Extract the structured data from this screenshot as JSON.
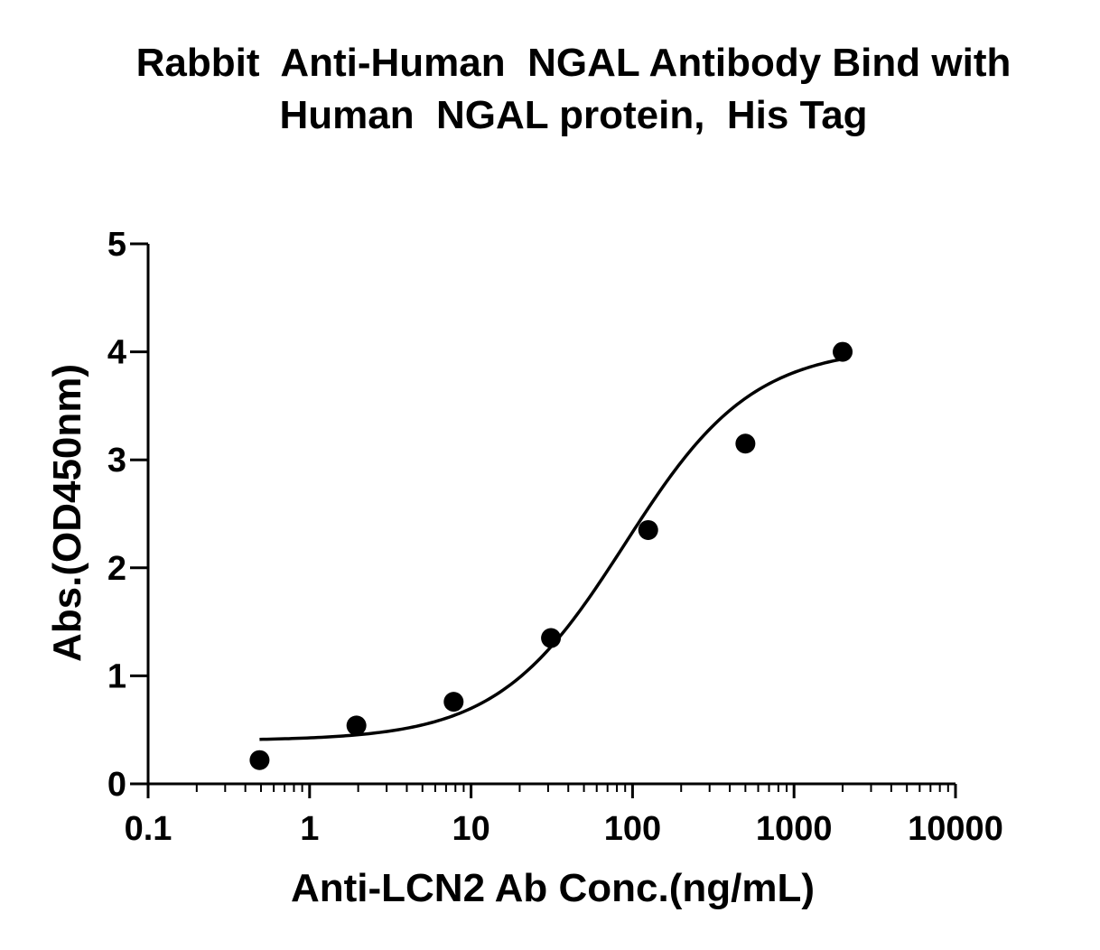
{
  "chart_data": {
    "type": "scatter",
    "title_lines": [
      "Rabbit  Anti-Human  NGAL Antibody Bind with",
      "Human  NGAL protein,  His Tag"
    ],
    "xlabel": "Anti-LCN2 Ab Conc.(ng/mL)",
    "ylabel": "Abs.(OD450nm)",
    "x_scale": "log",
    "xlim": [
      0.1,
      10000
    ],
    "ylim": [
      0,
      5
    ],
    "x_ticks": [
      "0.1",
      "1",
      "10",
      "100",
      "1000",
      "10000"
    ],
    "y_ticks": [
      "0",
      "1",
      "2",
      "3",
      "4",
      "5"
    ],
    "grid": false,
    "legend": "none",
    "series": [
      {
        "x": [
          0.49,
          1.95,
          7.8,
          31.25,
          125,
          500,
          2000
        ],
        "y": [
          0.22,
          0.54,
          0.76,
          1.35,
          2.35,
          3.15,
          4.0
        ],
        "marker": "circle",
        "color": "#000000"
      }
    ],
    "fit_curve": {
      "model": "4PL",
      "x_range": [
        0.49,
        2000
      ],
      "bottom": 0.4,
      "top": 4.05,
      "ec50": 90,
      "hill": 1.1,
      "color": "#000000"
    }
  }
}
